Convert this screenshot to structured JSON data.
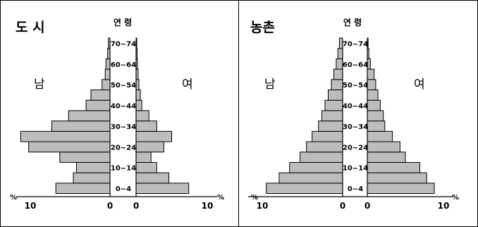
{
  "chart_data": [
    {
      "type": "bar",
      "title": "도 시",
      "age_header": "연 령",
      "male_label": "남",
      "female_label": "여",
      "unit": "%",
      "age_groups": [
        "0~4",
        "5~9",
        "10~14",
        "15~19",
        "20~24",
        "25~29",
        "30~34",
        "35~39",
        "40~44",
        "45~49",
        "50~54",
        "55~59",
        "60~64",
        "65~69",
        "70~74"
      ],
      "age_labels_shown": [
        "0~4",
        "10~14",
        "20~24",
        "30~34",
        "40~44",
        "50~54",
        "60~64",
        "70~74"
      ],
      "series": [
        {
          "name": "남",
          "values": [
            6.8,
            4.6,
            4.2,
            6.3,
            10.2,
            11.2,
            7.3,
            5.2,
            3.0,
            2.4,
            1.0,
            0.6,
            0.5,
            0.3,
            0.2
          ]
        },
        {
          "name": "여",
          "values": [
            7.4,
            4.6,
            2.9,
            2.1,
            3.9,
            5.0,
            2.9,
            1.8,
            0.8,
            0.6,
            0.4,
            0.3,
            0.2,
            0.15,
            0.1
          ]
        }
      ],
      "xlim_male": [
        0,
        10
      ],
      "xlim_female": [
        0,
        10
      ],
      "male_ticks": [
        "10",
        "0"
      ],
      "female_ticks": [
        "0",
        "10"
      ]
    },
    {
      "type": "bar",
      "title": "농촌",
      "age_header": "연 령",
      "male_label": "남",
      "female_label": "여",
      "unit": "%",
      "age_groups": [
        "0~4",
        "5~9",
        "10~14",
        "15~19",
        "20~24",
        "25~29",
        "30~34",
        "35~39",
        "40~44",
        "45~49",
        "50~54",
        "55~59",
        "60~64",
        "65~69",
        "70~74"
      ],
      "age_labels_shown": [
        "0~4",
        "10~14",
        "20~24",
        "30~34",
        "40~44",
        "50~54",
        "60~64",
        "70~74"
      ],
      "series": [
        {
          "name": "남",
          "values": [
            9.5,
            7.9,
            6.6,
            5.3,
            4.5,
            3.8,
            3.0,
            2.6,
            2.2,
            1.8,
            1.4,
            1.1,
            0.8,
            0.6,
            0.4
          ]
        },
        {
          "name": "여",
          "values": [
            8.8,
            7.8,
            6.9,
            5.0,
            4.3,
            3.3,
            2.3,
            2.1,
            1.7,
            1.4,
            1.1,
            0.9,
            0.4,
            0.2,
            0.1
          ]
        }
      ],
      "xlim_male": [
        0,
        10
      ],
      "xlim_female": [
        0,
        10
      ],
      "male_ticks": [
        "10",
        "0"
      ],
      "female_ticks": [
        "0",
        "10"
      ]
    }
  ]
}
